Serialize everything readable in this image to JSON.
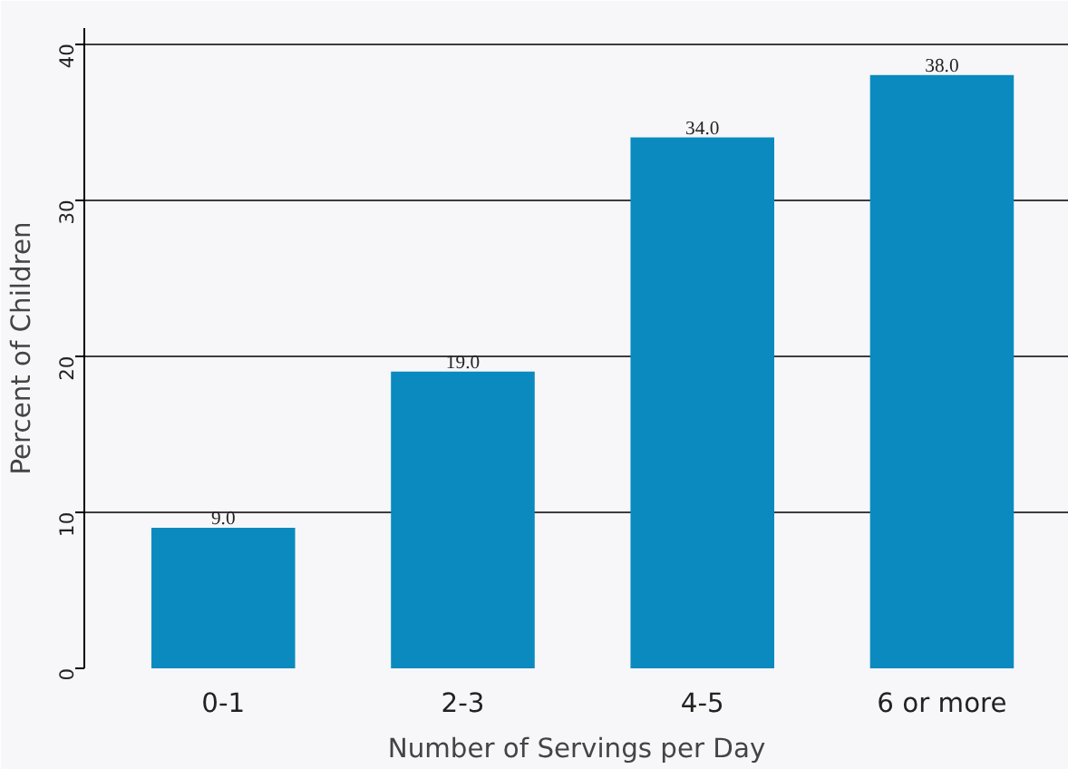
{
  "chart_data": {
    "type": "bar",
    "xlabel": "Number of Servings per Day",
    "ylabel": "Percent of Children",
    "categories": [
      "0-1",
      "2-3",
      "4-5",
      "6 or more"
    ],
    "values": [
      9,
      19,
      34,
      38
    ],
    "value_labels": [
      "9.0",
      "19.0",
      "34.0",
      "38.0"
    ],
    "color": "#0a8abf",
    "ylim": [
      0,
      41
    ],
    "yticks": [
      0,
      10,
      20,
      30,
      40
    ],
    "grid": "y"
  }
}
